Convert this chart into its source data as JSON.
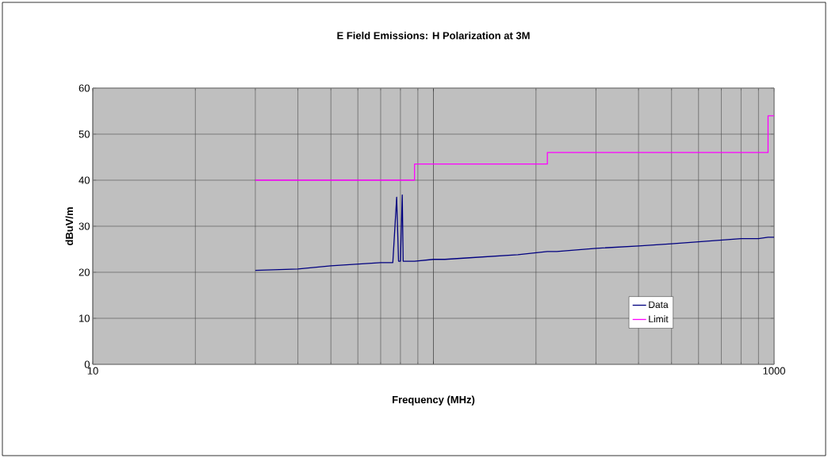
{
  "chart_data": {
    "type": "line",
    "title": "E Field Emissions: H Polarization at 3M",
    "xlabel": "Frequency (MHz)",
    "ylabel": "dBuV/m",
    "log": "x",
    "xlim": [
      10,
      1000
    ],
    "ylim": [
      0,
      60
    ],
    "xticks": [
      10,
      {
        "value": 100,
        "label": null
      },
      1000
    ],
    "yticks": [
      0,
      10,
      20,
      30,
      40,
      50,
      60
    ],
    "grid": true,
    "legend": "bottom right",
    "marker": "none",
    "line_style": "solid",
    "series": [
      {
        "name": "Data",
        "color": "#000080",
        "x": [
          30,
          40,
          50,
          70,
          76,
          78,
          79,
          80,
          81,
          81.5,
          88,
          100,
          108,
          125,
          177,
          216,
          230,
          300,
          400,
          500,
          600,
          800,
          900,
          960,
          1000
        ],
        "values": [
          20.4,
          20.7,
          21.4,
          22.1,
          22.1,
          36.3,
          22.4,
          22.4,
          36.8,
          22.4,
          22.4,
          22.8,
          22.8,
          23.1,
          23.8,
          24.5,
          24.5,
          25.2,
          25.7,
          26.2,
          26.6,
          27.3,
          27.3,
          27.6,
          27.6
        ]
      },
      {
        "name": "Limit",
        "color": "#ff00ff",
        "type": "step",
        "x": [
          30,
          88,
          216,
          960,
          1000
        ],
        "values": [
          40,
          43.5,
          46,
          54,
          54
        ]
      }
    ]
  }
}
